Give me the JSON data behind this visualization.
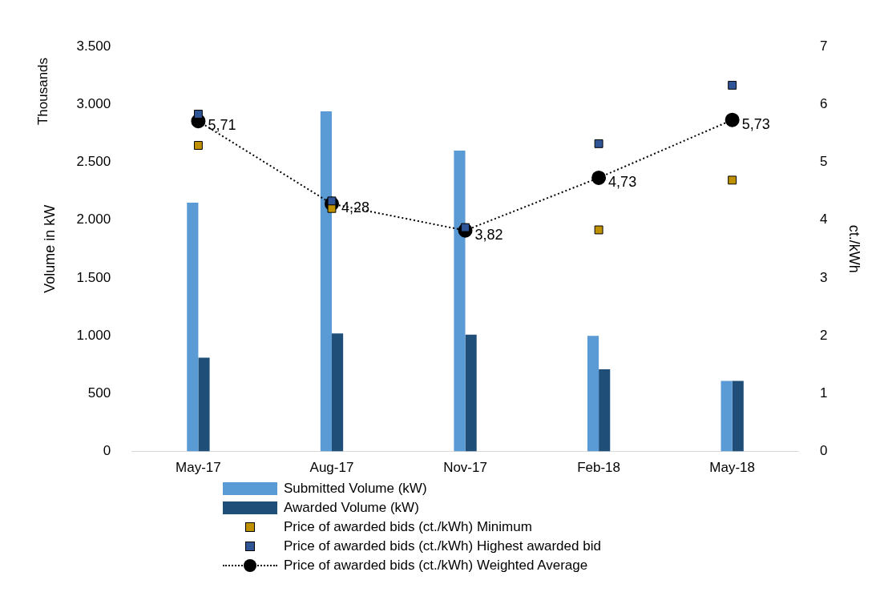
{
  "chart_data": {
    "type": "bar",
    "categories": [
      "May-17",
      "Aug-17",
      "Nov-17",
      "Feb-18",
      "May-18"
    ],
    "series": [
      {
        "name": "Submitted Volume (kW)",
        "color": "#5b9bd5",
        "values": [
          2150,
          2940,
          2600,
          1000,
          610
        ]
      },
      {
        "name": "Awarded Volume (kW)",
        "color": "#1f4e79",
        "values": [
          810,
          1020,
          1010,
          710,
          610
        ]
      },
      {
        "name": "Price of awarded bids (ct./kWh) Minimum",
        "type": "scatter",
        "axis": "y2",
        "color": "#bf9000",
        "x": [
          "May-17",
          "Aug-17",
          "Nov-17",
          "Feb-18",
          "May-18"
        ],
        "values": [
          5.29,
          4.2,
          null,
          3.83,
          4.69
        ]
      },
      {
        "name": "Price of awarded bids (ct./kWh) Highest awarded bid",
        "type": "scatter",
        "axis": "y2",
        "color": "#2f5597",
        "x": [
          "May-17",
          "Aug-17",
          "Nov-17",
          "Feb-18",
          "May-18"
        ],
        "values": [
          5.83,
          4.33,
          3.87,
          5.32,
          6.33
        ]
      },
      {
        "name": "Price of awarded bids (ct./kWh) Weighted Average",
        "type": "line",
        "axis": "y2",
        "color": "#000000",
        "marker": "circle",
        "line_style": "dotted",
        "values": [
          5.71,
          4.28,
          3.82,
          4.73,
          5.73
        ],
        "value_labels": [
          "5,71",
          "4,28",
          "3,82",
          "4,73",
          "5,73"
        ]
      }
    ],
    "ylabel": "Volume in kW",
    "y2label": "ct./kWh",
    "ylim": [
      0,
      3500
    ],
    "yticks": [
      {
        "value": 0,
        "label": "0"
      },
      {
        "value": 500,
        "label": "500"
      },
      {
        "value": 1000,
        "label": "1.000"
      },
      {
        "value": 1500,
        "label": "1.500"
      },
      {
        "value": 2000,
        "label": "2.000"
      },
      {
        "value": 2500,
        "label": "2.500"
      },
      {
        "value": 3000,
        "label": "3.000"
      },
      {
        "value": 3500,
        "label": "3.500"
      }
    ],
    "y2lim": [
      0,
      7
    ],
    "y2ticks": [
      0,
      1,
      2,
      3,
      4,
      5,
      6,
      7
    ],
    "annotations": [
      "Thousands"
    ],
    "grid": false,
    "legend": "bottom"
  }
}
